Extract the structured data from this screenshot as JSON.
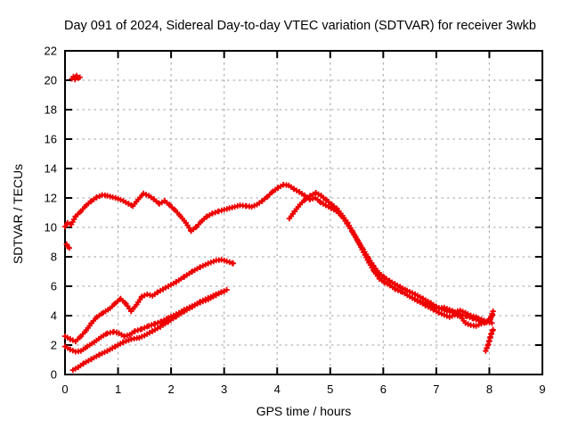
{
  "chart_data": {
    "type": "scatter",
    "title": "Day 091 of 2024, Sidereal Day-to-day VTEC variation (SDTVAR) for receiver 3wkb",
    "xlabel": "GPS time / hours",
    "ylabel": "SDTVAR / TECUs",
    "xlim": [
      0,
      9
    ],
    "ylim": [
      0,
      22
    ],
    "x_ticks": [
      0,
      1,
      2,
      3,
      4,
      5,
      6,
      7,
      8,
      9
    ],
    "y_ticks": [
      0,
      2,
      4,
      6,
      8,
      10,
      12,
      14,
      16,
      18,
      20,
      22
    ],
    "grid": true,
    "legend": "none",
    "point_color": "#ee0000",
    "grid_color": "#b4b4b4",
    "frame_color": "#000000",
    "marker": "plus",
    "series": [
      {
        "name": "trace-main",
        "points": [
          [
            0,
            10.05
          ],
          [
            0.05,
            10.3
          ],
          [
            0.12,
            10.2
          ],
          [
            0.2,
            10.75
          ],
          [
            0.3,
            11.1
          ],
          [
            0.4,
            11.5
          ],
          [
            0.5,
            11.8
          ],
          [
            0.6,
            12.05
          ],
          [
            0.7,
            12.2
          ],
          [
            0.8,
            12.15
          ],
          [
            0.9,
            12.05
          ],
          [
            1.0,
            11.95
          ],
          [
            1.1,
            11.8
          ],
          [
            1.2,
            11.6
          ],
          [
            1.28,
            11.45
          ],
          [
            1.38,
            11.9
          ],
          [
            1.48,
            12.3
          ],
          [
            1.58,
            12.15
          ],
          [
            1.68,
            11.9
          ],
          [
            1.78,
            11.6
          ],
          [
            1.88,
            11.8
          ],
          [
            1.98,
            11.5
          ],
          [
            2.08,
            11.15
          ],
          [
            2.18,
            10.75
          ],
          [
            2.28,
            10.3
          ],
          [
            2.38,
            9.75
          ],
          [
            2.48,
            10.05
          ],
          [
            2.58,
            10.45
          ],
          [
            2.68,
            10.75
          ],
          [
            2.78,
            10.95
          ],
          [
            2.9,
            11.1
          ],
          [
            3.0,
            11.2
          ],
          [
            3.1,
            11.3
          ],
          [
            3.2,
            11.4
          ],
          [
            3.3,
            11.5
          ],
          [
            3.42,
            11.45
          ],
          [
            3.52,
            11.4
          ],
          [
            3.62,
            11.55
          ],
          [
            3.72,
            11.8
          ],
          [
            3.82,
            12.1
          ],
          [
            3.92,
            12.45
          ],
          [
            4.02,
            12.7
          ],
          [
            4.12,
            12.9
          ],
          [
            4.22,
            12.85
          ],
          [
            4.32,
            12.6
          ],
          [
            4.42,
            12.4
          ],
          [
            4.52,
            12.15
          ],
          [
            4.62,
            11.9
          ],
          [
            4.72,
            12.0
          ],
          [
            4.82,
            11.7
          ],
          [
            4.92,
            11.5
          ],
          [
            5.02,
            11.3
          ],
          [
            5.12,
            11.1
          ],
          [
            5.22,
            10.75
          ],
          [
            5.32,
            10.25
          ],
          [
            5.42,
            9.7
          ],
          [
            5.52,
            9.1
          ],
          [
            5.62,
            8.5
          ],
          [
            5.72,
            7.9
          ],
          [
            5.82,
            7.35
          ],
          [
            5.92,
            6.9
          ],
          [
            6.02,
            6.6
          ],
          [
            6.12,
            6.35
          ],
          [
            6.22,
            6.15
          ],
          [
            6.32,
            5.95
          ],
          [
            6.45,
            5.7
          ],
          [
            6.6,
            5.45
          ],
          [
            6.75,
            5.15
          ],
          [
            6.9,
            4.85
          ],
          [
            7.0,
            4.6
          ],
          [
            7.1,
            4.45
          ],
          [
            7.2,
            4.3
          ],
          [
            7.32,
            4.25
          ],
          [
            7.45,
            4.1
          ],
          [
            7.58,
            3.95
          ],
          [
            7.7,
            3.8
          ],
          [
            7.82,
            3.65
          ],
          [
            7.92,
            3.55
          ],
          [
            8.0,
            3.7
          ],
          [
            8.06,
            4.05
          ]
        ]
      },
      {
        "name": "trace-low-a",
        "points": [
          [
            0,
            2.6
          ],
          [
            0.1,
            2.4
          ],
          [
            0.2,
            2.25
          ],
          [
            0.3,
            2.6
          ],
          [
            0.4,
            3.0
          ],
          [
            0.5,
            3.5
          ],
          [
            0.6,
            3.9
          ],
          [
            0.72,
            4.2
          ],
          [
            0.85,
            4.5
          ],
          [
            0.95,
            4.85
          ],
          [
            1.05,
            5.15
          ],
          [
            1.15,
            4.8
          ],
          [
            1.25,
            4.3
          ],
          [
            1.35,
            4.75
          ],
          [
            1.45,
            5.3
          ],
          [
            1.55,
            5.45
          ],
          [
            1.65,
            5.35
          ],
          [
            1.75,
            5.6
          ],
          [
            1.85,
            5.8
          ],
          [
            1.95,
            6.0
          ],
          [
            2.1,
            6.3
          ],
          [
            2.25,
            6.65
          ],
          [
            2.4,
            7.0
          ],
          [
            2.55,
            7.3
          ],
          [
            2.7,
            7.55
          ],
          [
            2.85,
            7.75
          ],
          [
            2.95,
            7.8
          ],
          [
            3.05,
            7.7
          ],
          [
            3.17,
            7.55
          ]
        ]
      },
      {
        "name": "trace-low-b",
        "points": [
          [
            0,
            1.9
          ],
          [
            0.1,
            1.7
          ],
          [
            0.2,
            1.55
          ],
          [
            0.3,
            1.6
          ],
          [
            0.42,
            1.9
          ],
          [
            0.55,
            2.2
          ],
          [
            0.68,
            2.55
          ],
          [
            0.8,
            2.8
          ],
          [
            0.92,
            2.9
          ],
          [
            1.02,
            2.8
          ],
          [
            1.12,
            2.6
          ],
          [
            1.22,
            2.7
          ],
          [
            1.32,
            2.95
          ],
          [
            1.45,
            3.1
          ],
          [
            1.58,
            3.3
          ],
          [
            1.7,
            3.45
          ],
          [
            1.82,
            3.6
          ],
          [
            1.95,
            3.85
          ],
          [
            2.1,
            4.1
          ],
          [
            2.25,
            4.4
          ],
          [
            2.4,
            4.65
          ],
          [
            2.55,
            4.9
          ],
          [
            2.7,
            5.1
          ],
          [
            2.85,
            5.4
          ],
          [
            2.95,
            5.6
          ],
          [
            3.05,
            5.75
          ]
        ]
      },
      {
        "name": "trace-low-c",
        "points": [
          [
            0.15,
            0.3
          ],
          [
            0.25,
            0.5
          ],
          [
            0.35,
            0.75
          ],
          [
            0.5,
            1.05
          ],
          [
            0.65,
            1.35
          ],
          [
            0.8,
            1.6
          ],
          [
            0.95,
            1.9
          ],
          [
            1.1,
            2.2
          ],
          [
            1.25,
            2.4
          ],
          [
            1.4,
            2.5
          ],
          [
            1.5,
            2.65
          ],
          [
            1.65,
            2.95
          ],
          [
            1.8,
            3.25
          ],
          [
            1.95,
            3.6
          ],
          [
            2.1,
            3.95
          ],
          [
            2.25,
            4.3
          ],
          [
            2.4,
            4.6
          ],
          [
            2.55,
            4.95
          ],
          [
            2.7,
            5.2
          ],
          [
            2.85,
            5.45
          ],
          [
            3.0,
            5.65
          ]
        ]
      },
      {
        "name": "trace-late",
        "points": [
          [
            4.23,
            10.6
          ],
          [
            4.33,
            11.1
          ],
          [
            4.43,
            11.55
          ],
          [
            4.53,
            11.9
          ],
          [
            4.63,
            12.15
          ],
          [
            4.73,
            12.35
          ],
          [
            4.83,
            12.15
          ],
          [
            4.93,
            11.85
          ],
          [
            5.03,
            11.55
          ],
          [
            5.13,
            11.25
          ],
          [
            5.23,
            10.8
          ],
          [
            5.33,
            10.3
          ],
          [
            5.43,
            9.65
          ],
          [
            5.53,
            9.0
          ],
          [
            5.63,
            8.3
          ],
          [
            5.73,
            7.6
          ],
          [
            5.83,
            7.0
          ],
          [
            5.93,
            6.5
          ],
          [
            6.03,
            6.25
          ],
          [
            6.13,
            6.05
          ],
          [
            6.23,
            5.8
          ],
          [
            6.36,
            5.6
          ],
          [
            6.5,
            5.3
          ],
          [
            6.65,
            5.0
          ],
          [
            6.8,
            4.7
          ],
          [
            6.95,
            4.4
          ],
          [
            7.05,
            4.2
          ],
          [
            7.15,
            4.05
          ],
          [
            7.25,
            3.9
          ],
          [
            7.35,
            4.05
          ],
          [
            7.45,
            3.95
          ],
          [
            7.55,
            3.5
          ],
          [
            7.65,
            3.35
          ],
          [
            7.75,
            3.3
          ],
          [
            7.85,
            3.45
          ],
          [
            7.95,
            3.55
          ],
          [
            8.02,
            3.75
          ],
          [
            8.07,
            4.3
          ]
        ]
      },
      {
        "name": "trace-late-b",
        "points": [
          [
            6.55,
            5.2
          ],
          [
            6.65,
            5.05
          ],
          [
            6.75,
            4.9
          ],
          [
            6.85,
            4.75
          ],
          [
            6.95,
            4.6
          ],
          [
            7.05,
            4.5
          ],
          [
            7.15,
            4.55
          ],
          [
            7.25,
            4.4
          ],
          [
            7.35,
            4.25
          ],
          [
            7.45,
            4.35
          ],
          [
            7.55,
            4.2
          ],
          [
            7.65,
            4.0
          ],
          [
            7.75,
            3.9
          ],
          [
            7.85,
            3.75
          ],
          [
            7.95,
            3.6
          ],
          [
            8.05,
            3.5
          ]
        ]
      },
      {
        "name": "outlier-cluster",
        "points": [
          [
            0.13,
            20.1
          ],
          [
            0.16,
            20.25
          ],
          [
            0.19,
            20.05
          ],
          [
            0.22,
            20.3
          ],
          [
            0.25,
            20.15
          ],
          [
            0.28,
            20.2
          ],
          [
            0.2,
            20.2
          ]
        ]
      },
      {
        "name": "left-dash",
        "points": [
          [
            0.03,
            8.85
          ],
          [
            0.05,
            8.7
          ],
          [
            0.08,
            8.6
          ]
        ]
      },
      {
        "name": "isolated-rise",
        "points": [
          [
            7.93,
            1.6
          ],
          [
            7.95,
            1.8
          ],
          [
            7.98,
            2.05
          ],
          [
            8.0,
            2.3
          ],
          [
            8.02,
            2.55
          ],
          [
            8.04,
            2.8
          ],
          [
            8.07,
            3.05
          ]
        ]
      }
    ]
  }
}
